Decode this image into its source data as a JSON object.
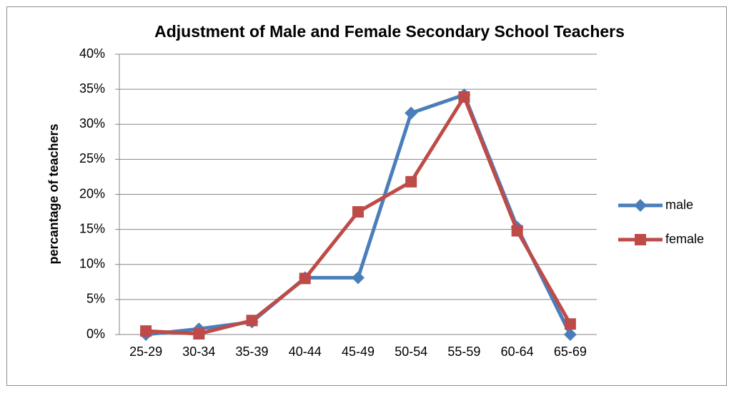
{
  "chart_data": {
    "type": "line",
    "title": "Adjustment of Male and Female Secondary School Teachers",
    "y_label": "percantage  of  teachers",
    "categories": [
      "25-29",
      "30-34",
      "35-39",
      "40-44",
      "45-49",
      "50-54",
      "55-59",
      "60-64",
      "65-69"
    ],
    "series": [
      {
        "name": "male",
        "color": "#4a7ebb",
        "marker": "diamond",
        "values": [
          0,
          0.8,
          1.8,
          8.1,
          8.1,
          31.6,
          34.2,
          15.3,
          0
        ]
      },
      {
        "name": "female",
        "color": "#be4b48",
        "marker": "square",
        "values": [
          0.5,
          0.1,
          2.0,
          8.0,
          17.5,
          21.8,
          33.9,
          14.8,
          1.5
        ]
      }
    ],
    "ylim": [
      0,
      40
    ],
    "yticks": [
      {
        "value": 0,
        "label": "0%"
      },
      {
        "value": 5,
        "label": "5%"
      },
      {
        "value": 10,
        "label": "10%"
      },
      {
        "value": 15,
        "label": "15%"
      },
      {
        "value": 20,
        "label": "20%"
      },
      {
        "value": 25,
        "label": "25%"
      },
      {
        "value": 30,
        "label": "30%"
      },
      {
        "value": 35,
        "label": "35%"
      },
      {
        "value": 40,
        "label": "40%"
      }
    ],
    "grid": true,
    "legend": "right"
  }
}
